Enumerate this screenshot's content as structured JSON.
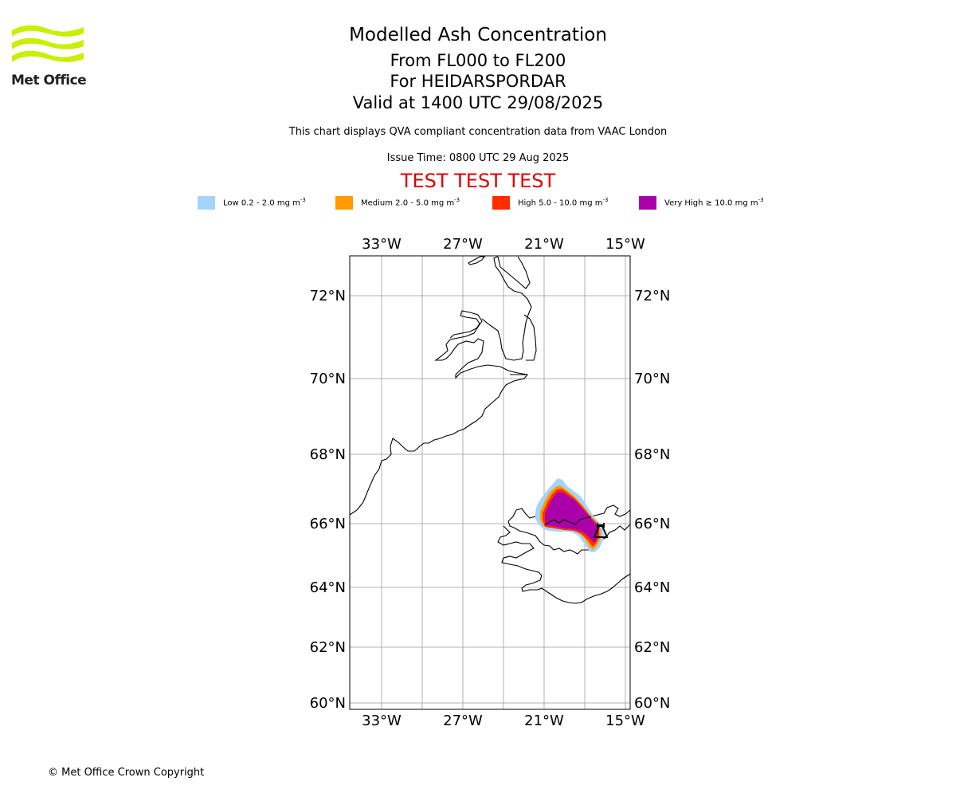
{
  "logo": {
    "text": "Met Office"
  },
  "header": {
    "title": "Modelled Ash Concentration",
    "subtitle_levels": "From FL000 to FL200",
    "subtitle_volcano": "For HEIDARSPORDAR",
    "subtitle_valid": "Valid at 1400 UTC 29/08/2025",
    "description": "This chart displays QVA compliant concentration data from VAAC London",
    "issue_time": "Issue Time: 0800 UTC 29 Aug 2025",
    "test_banner": "TEST TEST TEST"
  },
  "legend": [
    {
      "label": "Low 0.2 - 2.0 mg m",
      "color": "#a3d4fc"
    },
    {
      "label": "Medium 2.0 - 5.0 mg m",
      "color": "#ff9a00"
    },
    {
      "label": "High 5.0 - 10.0 mg m",
      "color": "#ff2c00"
    },
    {
      "label": "Very High ≥ 10.0 mg m",
      "color": "#aa00aa"
    }
  ],
  "legend_unit_exponent": "-3",
  "map": {
    "lon_ticks": [
      "33°W",
      "27°W",
      "21°W",
      "15°W"
    ],
    "lat_ticks": [
      "72°N",
      "70°N",
      "68°N",
      "66°N",
      "64°N",
      "62°N",
      "60°N"
    ],
    "gridlines": true
  },
  "footer": {
    "copyright": "© Met Office Crown Copyright"
  }
}
